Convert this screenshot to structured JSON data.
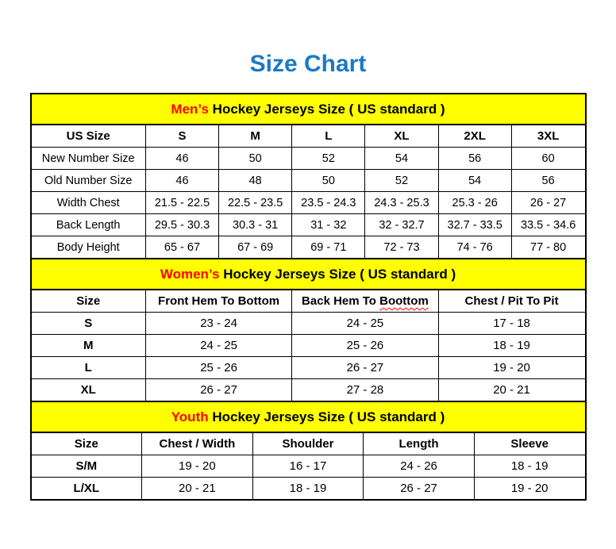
{
  "page": {
    "title": "Size Chart"
  },
  "colors": {
    "title_blue": "#1b7ac4",
    "header_yellow": "#ffff00",
    "highlight_red": "#ff0000",
    "border_black": "#000000"
  },
  "chart_data": [
    {
      "type": "table",
      "title_highlight": "Men’s",
      "title_rest": " Hockey Jerseys Size ( US standard )",
      "columns": [
        "US Size",
        "S",
        "M",
        "L",
        "XL",
        "2XL",
        "3XL"
      ],
      "rows": [
        {
          "label": "New Number Size",
          "values": [
            "46",
            "50",
            "52",
            "54",
            "56",
            "60"
          ]
        },
        {
          "label": "Old Number Size",
          "values": [
            "46",
            "48",
            "50",
            "52",
            "54",
            "56"
          ]
        },
        {
          "label": "Width Chest",
          "values": [
            "21.5 - 22.5",
            "22.5 - 23.5",
            "23.5 - 24.3",
            "24.3 - 25.3",
            "25.3 - 26",
            "26 - 27"
          ]
        },
        {
          "label": "Back Length",
          "values": [
            "29.5 - 30.3",
            "30.3 - 31",
            "31 - 32",
            "32 - 32.7",
            "32.7 - 33.5",
            "33.5 - 34.6"
          ]
        },
        {
          "label": "Body Height",
          "values": [
            "65 - 67",
            "67 - 69",
            "69 - 71",
            "72 - 73",
            "74 - 76",
            "77 - 80"
          ]
        }
      ]
    },
    {
      "type": "table",
      "title_highlight": "Women’s",
      "title_rest": " Hockey Jerseys Size ( US standard )",
      "columns": [
        "Size",
        "Front Hem To Bottom",
        "Back Hem To Boottom",
        "Chest / Pit To Pit"
      ],
      "spellcheck": {
        "prefix": "Back Hem To ",
        "word": "Boottom"
      },
      "rows": [
        {
          "label": "S",
          "values": [
            "23 - 24",
            "24 - 25",
            "17 - 18"
          ]
        },
        {
          "label": "M",
          "values": [
            "24 - 25",
            "25 - 26",
            "18 - 19"
          ]
        },
        {
          "label": "L",
          "values": [
            "25 - 26",
            "26 - 27",
            "19 - 20"
          ]
        },
        {
          "label": "XL",
          "values": [
            "26 - 27",
            "27 - 28",
            "20 - 21"
          ]
        }
      ]
    },
    {
      "type": "table",
      "title_highlight": "Youth",
      "title_rest": " Hockey Jerseys Size ( US standard )",
      "columns": [
        "Size",
        "Chest / Width",
        "Shoulder",
        "Length",
        "Sleeve"
      ],
      "rows": [
        {
          "label": "S/M",
          "values": [
            "19 - 20",
            "16 - 17",
            "24 - 26",
            "18 - 19"
          ]
        },
        {
          "label": "L/XL",
          "values": [
            "20 - 21",
            "18 - 19",
            "26 - 27",
            "19 - 20"
          ]
        }
      ]
    }
  ]
}
